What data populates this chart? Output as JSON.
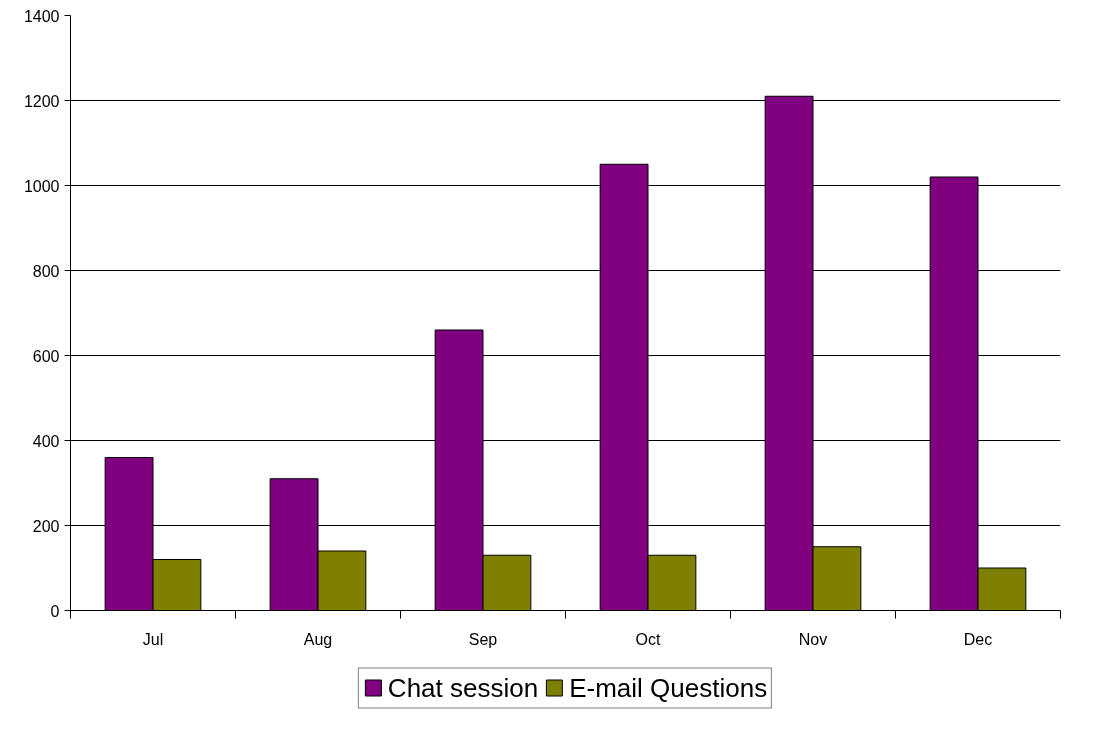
{
  "chart_data": {
    "type": "bar",
    "categories": [
      "Jul",
      "Aug",
      "Sep",
      "Oct",
      "Nov",
      "Dec"
    ],
    "series": [
      {
        "name": "Chat session",
        "color": "#800080",
        "values": [
          360,
          310,
          660,
          1050,
          1210,
          1020
        ]
      },
      {
        "name": "E-mail Questions",
        "color": "#808000",
        "values": [
          120,
          140,
          130,
          130,
          150,
          100
        ]
      }
    ],
    "ylim": [
      0,
      1400
    ],
    "yticks": [
      0,
      200,
      400,
      600,
      800,
      1000,
      1200,
      1400
    ],
    "grid": "y",
    "legend": "bottom"
  }
}
